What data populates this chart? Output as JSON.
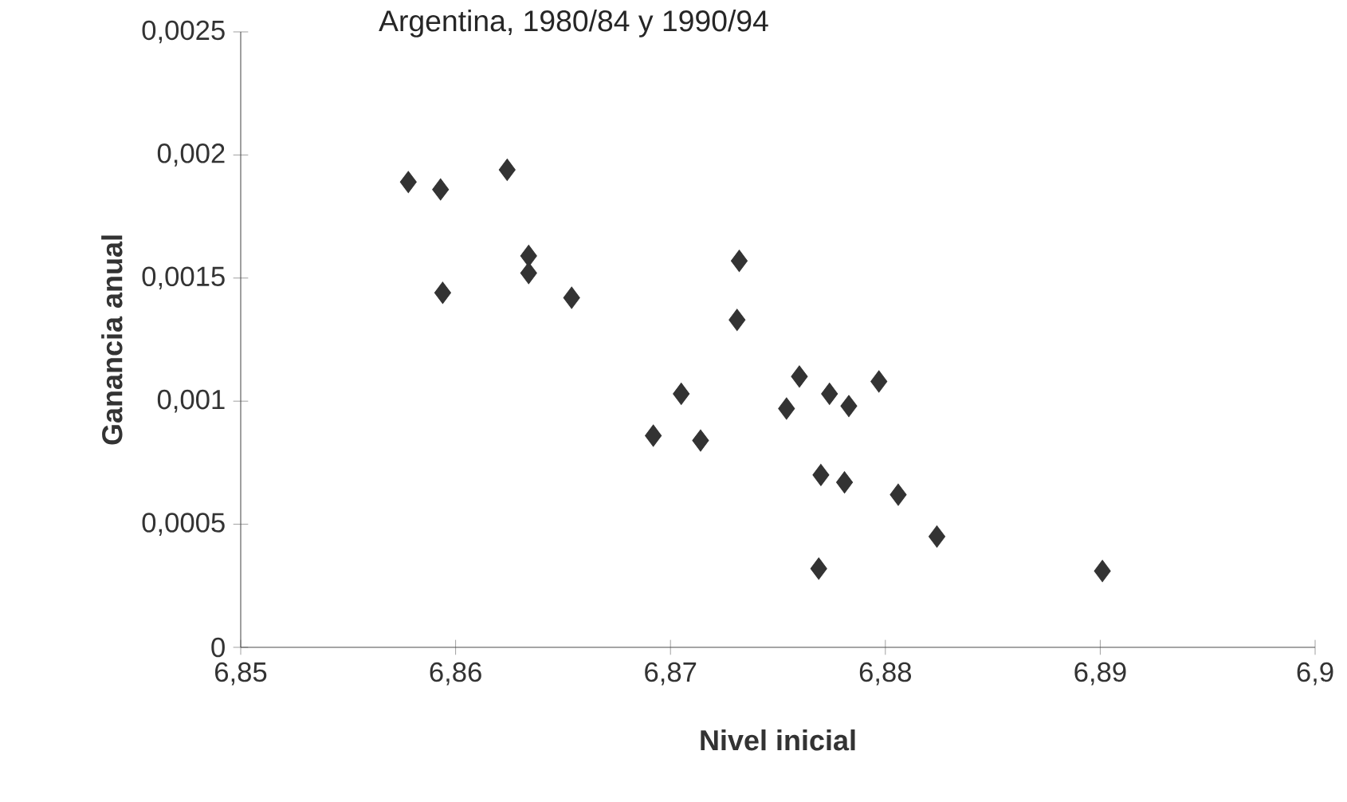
{
  "chart_data": {
    "type": "scatter",
    "title": "Argentina, 1980/84 y 1990/94",
    "xlabel": "Nivel inicial",
    "ylabel": "Ganancia anual",
    "x": [
      6.8578,
      6.8593,
      6.8624,
      6.8634,
      6.8634,
      6.8594,
      6.8654,
      6.8732,
      6.8731,
      6.8705,
      6.8692,
      6.8714,
      6.876,
      6.8754,
      6.8774,
      6.8783,
      6.8797,
      6.877,
      6.8781,
      6.8806,
      6.8824,
      6.8769,
      6.8901
    ],
    "values": [
      0.00189,
      0.00186,
      0.00194,
      0.00159,
      0.00152,
      0.00144,
      0.00142,
      0.00157,
      0.00133,
      0.00103,
      0.00086,
      0.00084,
      0.0011,
      0.00097,
      0.00103,
      0.00098,
      0.00108,
      0.0007,
      0.00067,
      0.00062,
      0.00045,
      0.00032,
      0.00031
    ],
    "color": "#333333",
    "marker": "diamond",
    "xlim": [
      6.85,
      6.9
    ],
    "ylim": [
      0,
      0.0025
    ],
    "xticks": [
      {
        "value": 6.85,
        "label": "6,85"
      },
      {
        "value": 6.86,
        "label": "6,86"
      },
      {
        "value": 6.87,
        "label": "6,87"
      },
      {
        "value": 6.88,
        "label": "6,88"
      },
      {
        "value": 6.89,
        "label": "6,89"
      },
      {
        "value": 6.9,
        "label": "6,9"
      }
    ],
    "yticks": [
      0,
      {
        "value": 0.0005,
        "label": "0,0005"
      },
      {
        "value": 0.001,
        "label": "0,001"
      },
      {
        "value": 0.0015,
        "label": "0,0015"
      },
      {
        "value": 0.002,
        "label": "0,002"
      },
      {
        "value": 0.0025,
        "label": "0,0025"
      }
    ]
  }
}
